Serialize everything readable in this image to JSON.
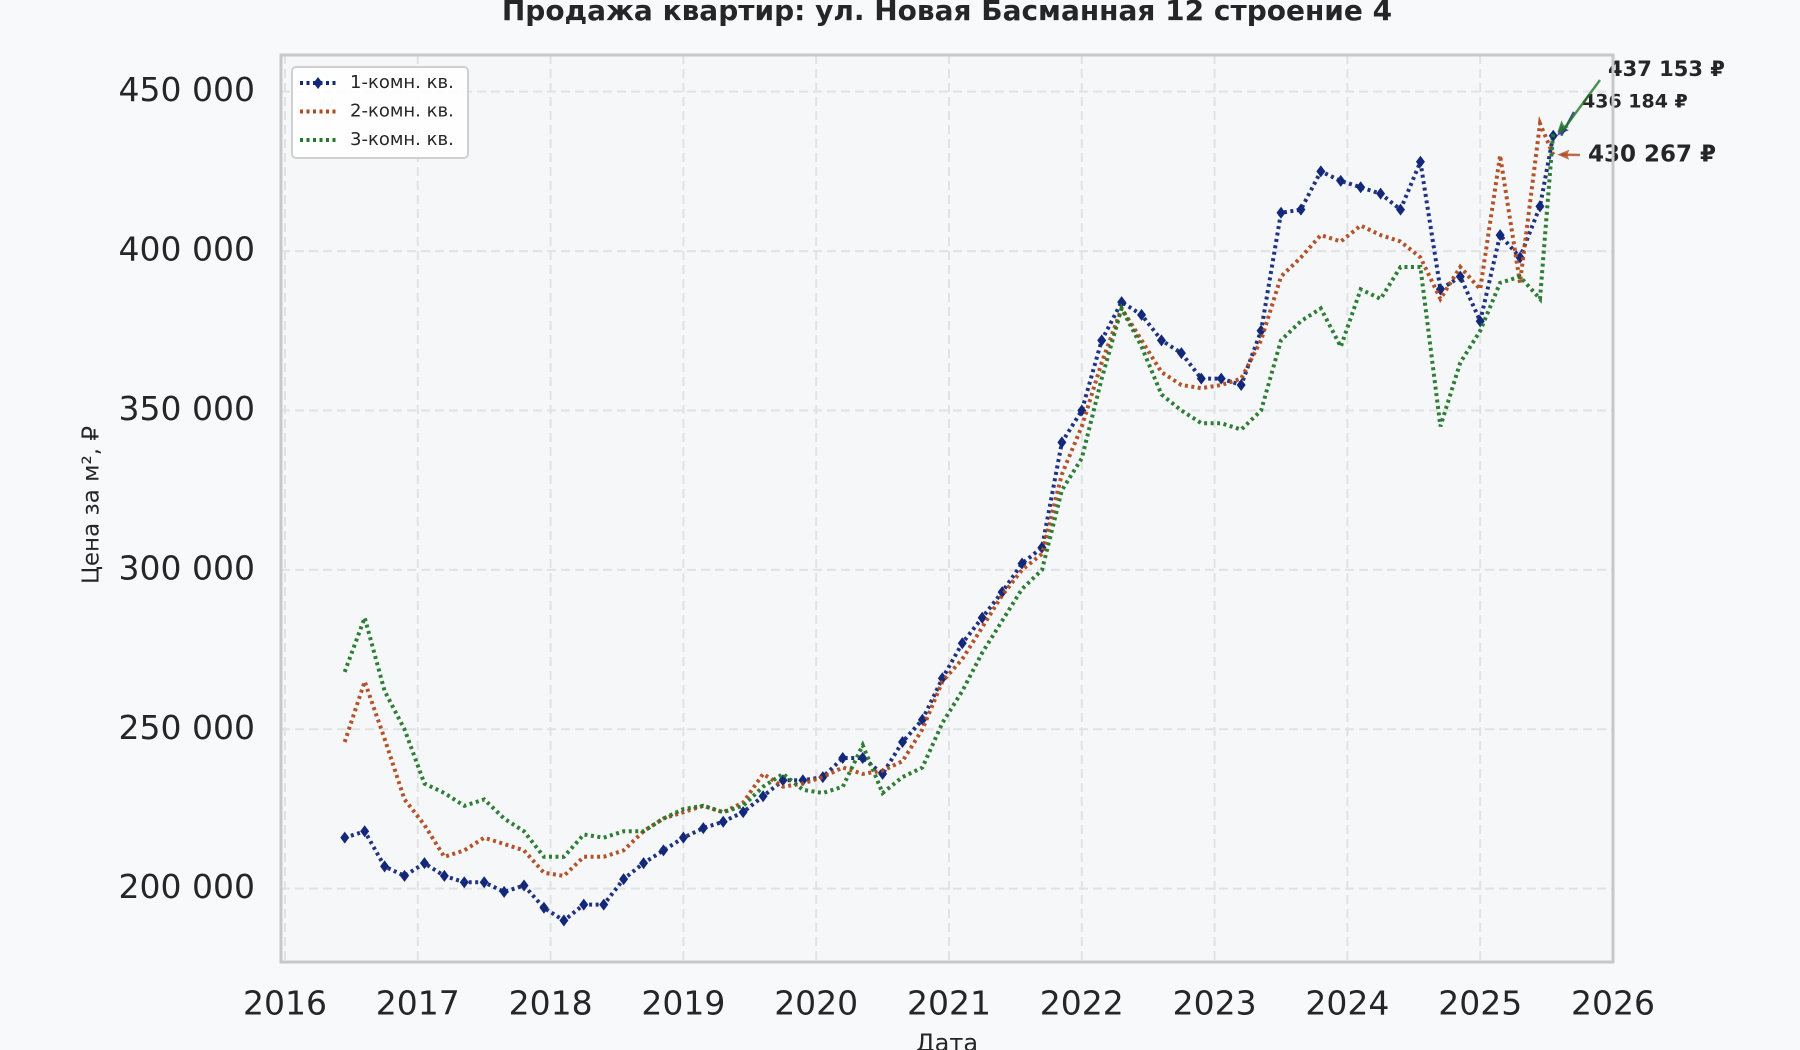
{
  "chart_data": {
    "type": "line",
    "title": "Продажа квартир: ул. Новая Басманная 12 строение 4",
    "xlabel": "Дата",
    "ylabel": "Цена за м², ₽",
    "grid": true,
    "legend": "upper left",
    "xlim": [
      2015.97,
      2026
    ],
    "xticks": [
      2016,
      2017,
      2018,
      2019,
      2020,
      2021,
      2022,
      2023,
      2024,
      2025,
      2026
    ],
    "ylim": [
      177000,
      461500
    ],
    "yticks": [
      {
        "value": 200000,
        "label": "200 000"
      },
      {
        "value": 250000,
        "label": "250 000"
      },
      {
        "value": 300000,
        "label": "300 000"
      },
      {
        "value": 350000,
        "label": "350 000"
      },
      {
        "value": 400000,
        "label": "400 000"
      },
      {
        "value": 450000,
        "label": "450 000"
      }
    ],
    "x": [
      2016.45,
      2016.6,
      2016.75,
      2016.9,
      2017.05,
      2017.2,
      2017.35,
      2017.5,
      2017.65,
      2017.8,
      2017.95,
      2018.1,
      2018.25,
      2018.4,
      2018.55,
      2018.7,
      2018.85,
      2019.0,
      2019.15,
      2019.3,
      2019.45,
      2019.6,
      2019.75,
      2019.9,
      2020.05,
      2020.2,
      2020.35,
      2020.5,
      2020.65,
      2020.8,
      2020.95,
      2021.1,
      2021.25,
      2021.4,
      2021.55,
      2021.7,
      2021.85,
      2022.0,
      2022.15,
      2022.3,
      2022.45,
      2022.6,
      2022.75,
      2022.9,
      2023.05,
      2023.2,
      2023.35,
      2023.5,
      2023.65,
      2023.8,
      2023.95,
      2024.1,
      2024.25,
      2024.4,
      2024.55,
      2024.7,
      2024.85,
      2025.0,
      2025.15,
      2025.3,
      2025.45,
      2025.55
    ],
    "series": [
      {
        "name": "1-комн. кв.",
        "color": "#14287a",
        "marker": "diamond",
        "values": [
          216000,
          218000,
          207000,
          204000,
          208000,
          204000,
          202000,
          202000,
          199000,
          201000,
          194000,
          190000,
          195000,
          195000,
          203000,
          208000,
          212000,
          216000,
          219000,
          221000,
          224000,
          229000,
          234000,
          234000,
          235000,
          241000,
          241000,
          236000,
          246000,
          253000,
          266000,
          277000,
          285000,
          293000,
          302000,
          307000,
          340000,
          350000,
          372000,
          384000,
          380000,
          372000,
          368000,
          360000,
          360000,
          358000,
          375000,
          412000,
          413000,
          425000,
          422000,
          420000,
          418000,
          413000,
          428000,
          388000,
          392000,
          378000,
          405000,
          398000,
          414000,
          436184
        ],
        "value_labels": [
          null,
          null,
          null,
          null,
          null,
          null,
          null,
          null,
          null,
          null,
          null,
          null,
          null,
          null,
          null,
          null,
          null,
          null,
          null,
          null,
          null,
          null,
          null,
          null,
          null,
          null,
          null,
          null,
          null,
          null,
          null,
          null,
          null,
          null,
          null,
          null,
          null,
          null,
          null,
          null,
          null,
          null,
          null,
          null,
          null,
          null,
          null,
          null,
          null,
          null,
          null,
          null,
          null,
          null,
          null,
          null,
          null,
          null,
          null,
          null,
          null,
          "436 184 ₽"
        ]
      },
      {
        "name": "2-комн. кв.",
        "color": "#b04a1e",
        "values": [
          246000,
          265000,
          247000,
          228000,
          220000,
          210000,
          212000,
          216000,
          214000,
          212000,
          205000,
          204000,
          210000,
          210000,
          212000,
          218000,
          222000,
          224000,
          226000,
          224000,
          227000,
          236000,
          232000,
          233000,
          235000,
          238000,
          236000,
          237000,
          240000,
          250000,
          265000,
          272000,
          282000,
          292000,
          300000,
          305000,
          330000,
          345000,
          365000,
          382000,
          372000,
          362000,
          358000,
          357000,
          358000,
          360000,
          372000,
          392000,
          398000,
          405000,
          403000,
          408000,
          405000,
          403000,
          398000,
          385000,
          395000,
          388000,
          430000,
          390000,
          440000,
          430267
        ],
        "value_labels": [
          null,
          null,
          null,
          null,
          null,
          null,
          null,
          null,
          null,
          null,
          null,
          null,
          null,
          null,
          null,
          null,
          null,
          null,
          null,
          null,
          null,
          null,
          null,
          null,
          null,
          null,
          null,
          null,
          null,
          null,
          null,
          null,
          null,
          null,
          null,
          null,
          null,
          null,
          null,
          null,
          null,
          null,
          null,
          null,
          null,
          null,
          null,
          null,
          null,
          null,
          null,
          null,
          null,
          null,
          null,
          null,
          null,
          null,
          null,
          null,
          null,
          "430 267 ₽"
        ]
      },
      {
        "name": "3-комн. кв.",
        "color": "#23782a",
        "values": [
          268000,
          285000,
          262000,
          250000,
          233000,
          230000,
          226000,
          228000,
          222000,
          218000,
          210000,
          210000,
          217000,
          216000,
          218000,
          218000,
          222000,
          225000,
          226000,
          224000,
          226000,
          232000,
          236000,
          231000,
          230000,
          232000,
          245000,
          230000,
          235000,
          238000,
          252000,
          262000,
          274000,
          284000,
          294000,
          300000,
          325000,
          335000,
          360000,
          382000,
          370000,
          355000,
          350000,
          346000,
          346000,
          344000,
          350000,
          372000,
          378000,
          382000,
          370000,
          388000,
          385000,
          395000,
          395000,
          345000,
          365000,
          375000,
          390000,
          392000,
          385000,
          437153
        ],
        "value_labels": [
          null,
          null,
          null,
          null,
          null,
          null,
          null,
          null,
          null,
          null,
          null,
          null,
          null,
          null,
          null,
          null,
          null,
          null,
          null,
          null,
          null,
          null,
          null,
          null,
          null,
          null,
          null,
          null,
          null,
          null,
          null,
          null,
          null,
          null,
          null,
          null,
          null,
          null,
          null,
          null,
          null,
          null,
          null,
          null,
          null,
          null,
          null,
          null,
          null,
          null,
          null,
          null,
          null,
          null,
          null,
          null,
          null,
          null,
          null,
          null,
          null,
          "437 153 ₽"
        ]
      }
    ]
  }
}
